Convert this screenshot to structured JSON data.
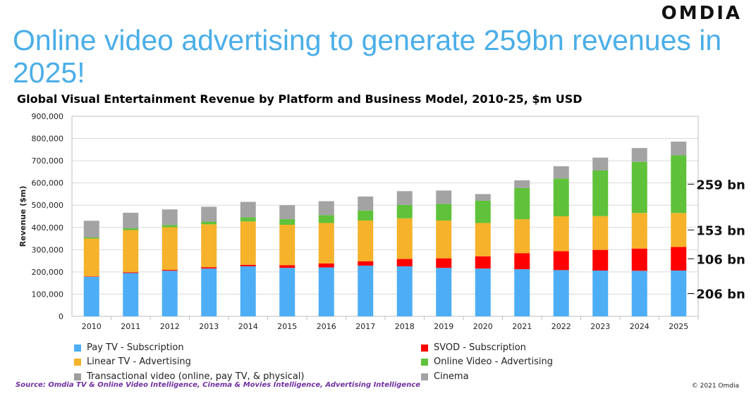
{
  "brand": {
    "logo": "OMDIA"
  },
  "headline": "Online video advertising to generate 259bn revenues in 2025!",
  "source": "Source: Omdia TV & Online Video Intelligence, Cinema & Movies Intelligence, Advertising Intelligence",
  "copyright": "© 2021 Omdia",
  "chart_data": {
    "type": "bar",
    "stacked": true,
    "title": "Global Visual Entertainment Revenue by Platform and Business Model, 2010-25, $m USD",
    "xlabel": "",
    "ylabel": "Revenue ($m)",
    "ylim": [
      0,
      900000
    ],
    "yticks": [
      0,
      100000,
      200000,
      300000,
      400000,
      500000,
      600000,
      700000,
      800000,
      900000
    ],
    "ytick_labels": [
      "0",
      "100,000",
      "200,000",
      "300,000",
      "400,000",
      "500,000",
      "600,000",
      "700,000",
      "800,000",
      "900,000"
    ],
    "grid": true,
    "legend_position": "bottom",
    "categories": [
      "2010",
      "2011",
      "2012",
      "2013",
      "2014",
      "2015",
      "2016",
      "2017",
      "2018",
      "2019",
      "2020",
      "2021",
      "2022",
      "2023",
      "2024",
      "2025"
    ],
    "series": [
      {
        "name": "Pay TV - Subscription",
        "color": "#4daef5",
        "values": [
          178000,
          195000,
          205000,
          215000,
          225000,
          218000,
          220000,
          228000,
          225000,
          218000,
          215000,
          212000,
          208000,
          206000,
          205000,
          206000
        ]
      },
      {
        "name": "SVOD - Subscription",
        "color": "#ff0000",
        "values": [
          2000,
          3000,
          4000,
          6000,
          7000,
          12000,
          18000,
          20000,
          33000,
          43000,
          55000,
          72000,
          85000,
          93000,
          100000,
          106000
        ]
      },
      {
        "name": "Linear TV - Advertising",
        "color": "#f5b22a",
        "values": [
          170000,
          190000,
          192000,
          193000,
          195000,
          182000,
          182000,
          183000,
          183000,
          170000,
          150000,
          153000,
          157000,
          152000,
          160000,
          153000
        ]
      },
      {
        "name": "Online Video - Advertising",
        "color": "#5fc23a",
        "values": [
          5000,
          8000,
          10000,
          12000,
          18000,
          25000,
          35000,
          45000,
          60000,
          75000,
          100000,
          140000,
          170000,
          205000,
          230000,
          259000
        ]
      },
      {
        "name": "Transactional video (online, pay TV, & physical)",
        "color": "#9e9e9e",
        "values": [
          0,
          0,
          0,
          0,
          0,
          0,
          0,
          0,
          0,
          0,
          0,
          0,
          0,
          0,
          0,
          0
        ]
      },
      {
        "name": "Cinema",
        "color": "#a3a3a3",
        "values": [
          75000,
          70000,
          70000,
          67000,
          70000,
          63000,
          63000,
          63000,
          62000,
          60000,
          30000,
          35000,
          55000,
          58000,
          62000,
          62000
        ]
      }
    ],
    "annotations": [
      {
        "text": "259 bn",
        "series": "Online Video - Advertising",
        "category": "2025"
      },
      {
        "text": "153 bn",
        "series": "Linear TV - Advertising",
        "category": "2025"
      },
      {
        "text": "106 bn",
        "series": "SVOD - Subscription",
        "category": "2025"
      },
      {
        "text": "206 bn",
        "series": "Pay TV - Subscription",
        "category": "2025"
      }
    ]
  }
}
